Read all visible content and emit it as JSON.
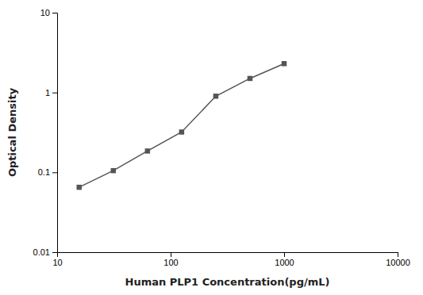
{
  "chart_data": {
    "type": "line",
    "x": [
      15.625,
      31.25,
      62.5,
      125,
      250,
      500,
      1000
    ],
    "values": [
      0.065,
      0.105,
      0.185,
      0.32,
      0.9,
      1.5,
      2.3
    ],
    "xlabel": "Human PLP1 Concentration(pg/mL)",
    "ylabel": "Optical Density",
    "log": true,
    "xlim": [
      10,
      10000
    ],
    "ylim": [
      0.01,
      10
    ],
    "xticks": [
      10,
      100,
      1000,
      10000
    ],
    "yticks": [
      0.01,
      0.1,
      1,
      10
    ],
    "color": "#555555",
    "marker": "square"
  }
}
